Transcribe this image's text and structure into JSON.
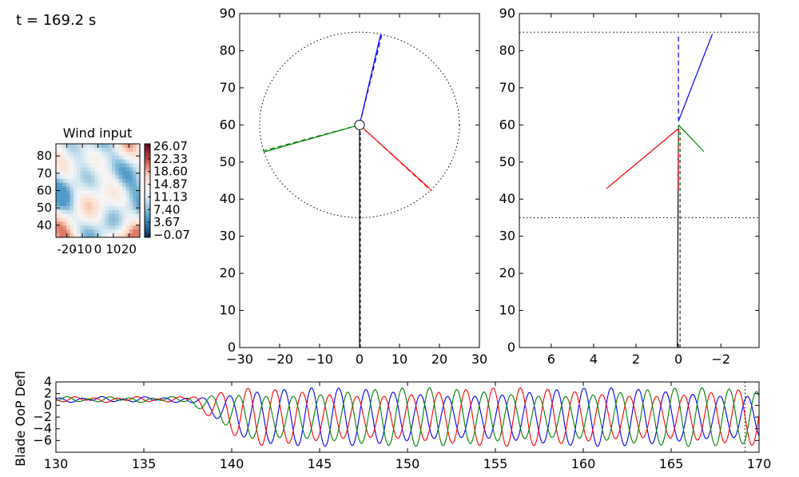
{
  "header": {
    "time_label": "t = 169.2 s"
  },
  "colors": {
    "blade1": "#0000ff",
    "blade2": "#ff0000",
    "blade3": "#008000",
    "tower": "#000000"
  },
  "chart_data": [
    {
      "type": "heatmap",
      "title": "Wind input",
      "xlim": [
        -27,
        27
      ],
      "ylim": [
        33,
        87
      ],
      "x_ticks": [
        -20,
        -10,
        0,
        10,
        20
      ],
      "y_ticks": [
        40,
        50,
        60,
        70,
        80
      ],
      "colorbar_ticks": [
        "26.07",
        "22.33",
        "18.60",
        "14.87",
        "11.13",
        "7.40",
        "3.67",
        "−0.07"
      ],
      "colormap": "RdBu_r"
    },
    {
      "type": "line",
      "view": "rotor front",
      "xlim": [
        -30,
        30
      ],
      "ylim": [
        0,
        90
      ],
      "x_ticks": [
        "−30",
        "−20",
        "−10",
        "0",
        "10",
        "20",
        "30"
      ],
      "y_ticks": [
        0,
        10,
        20,
        30,
        40,
        50,
        60,
        70,
        80,
        90
      ],
      "hub": [
        0,
        60
      ],
      "rotor_circle": {
        "center": [
          0,
          60
        ],
        "radius": 25
      },
      "tower": [
        [
          0,
          0
        ],
        [
          0,
          60
        ]
      ],
      "blades": [
        {
          "color": "blue",
          "solid": [
            [
              0,
              60
            ],
            [
              5.3,
              84.5
            ]
          ],
          "dashed": [
            [
              0,
              60
            ],
            [
              5.6,
              84.4
            ]
          ]
        },
        {
          "color": "red",
          "solid": [
            [
              0,
              60
            ],
            [
              17.6,
              42.8
            ]
          ],
          "dashed": [
            [
              0,
              60
            ],
            [
              18.0,
              42.2
            ]
          ]
        },
        {
          "color": "green",
          "solid": [
            [
              0,
              60
            ],
            [
              -24.0,
              52.7
            ]
          ],
          "dashed": [
            [
              0,
              60
            ],
            [
              -24.2,
              53.0
            ]
          ]
        }
      ]
    },
    {
      "type": "line",
      "view": "rotor side",
      "xlim": [
        7.5,
        -3.8
      ],
      "ylim": [
        0,
        90
      ],
      "x_ticks": [
        6,
        4,
        2,
        0,
        -2
      ],
      "x_tick_labels": [
        "6",
        "4",
        "2",
        "0",
        "−2"
      ],
      "y_ticks": [
        0,
        10,
        20,
        30,
        40,
        50,
        60,
        70,
        80,
        90
      ],
      "ref_lines_y": [
        85,
        35
      ],
      "tower": [
        [
          0.05,
          0
        ],
        [
          0,
          59
        ]
      ],
      "blades": [
        {
          "color": "blue",
          "solid": [
            [
              0,
              61
            ],
            [
              -1.6,
              84.5
            ]
          ],
          "dashed": [
            [
              0,
              61
            ],
            [
              0,
              84.5
            ]
          ]
        },
        {
          "color": "red",
          "solid": [
            [
              0,
              59
            ],
            [
              3.4,
              42.8
            ]
          ],
          "dashed": [
            [
              0,
              59
            ],
            [
              0,
              42.8
            ]
          ]
        },
        {
          "color": "green",
          "solid": [
            [
              0,
              60
            ],
            [
              -1.2,
              52.8
            ]
          ],
          "dashed": [
            [
              0,
              60
            ],
            [
              0,
              52.8
            ]
          ]
        }
      ]
    },
    {
      "type": "line",
      "ylabel": "Blade OoP Defl",
      "xlim": [
        130,
        170
      ],
      "ylim": [
        -8,
        4
      ],
      "x_ticks": [
        130,
        135,
        140,
        145,
        150,
        155,
        160,
        165,
        170
      ],
      "y_ticks": [
        4,
        2,
        0,
        -2,
        -4,
        -6
      ],
      "y_tick_labels": [
        "4",
        "2",
        "0",
        "−2",
        "−4",
        "−6"
      ],
      "current_time": 169.2,
      "series": [
        {
          "color": "blue",
          "period": 1.55,
          "phase": 0.0
        },
        {
          "color": "red",
          "period": 1.55,
          "phase": 2.09
        },
        {
          "color": "green",
          "period": 1.55,
          "phase": 4.19
        }
      ],
      "quiet_until": 137.5,
      "quiet_amplitude": 0.3,
      "steady_mean": -2.0,
      "steady_amplitude": 5.0
    }
  ]
}
